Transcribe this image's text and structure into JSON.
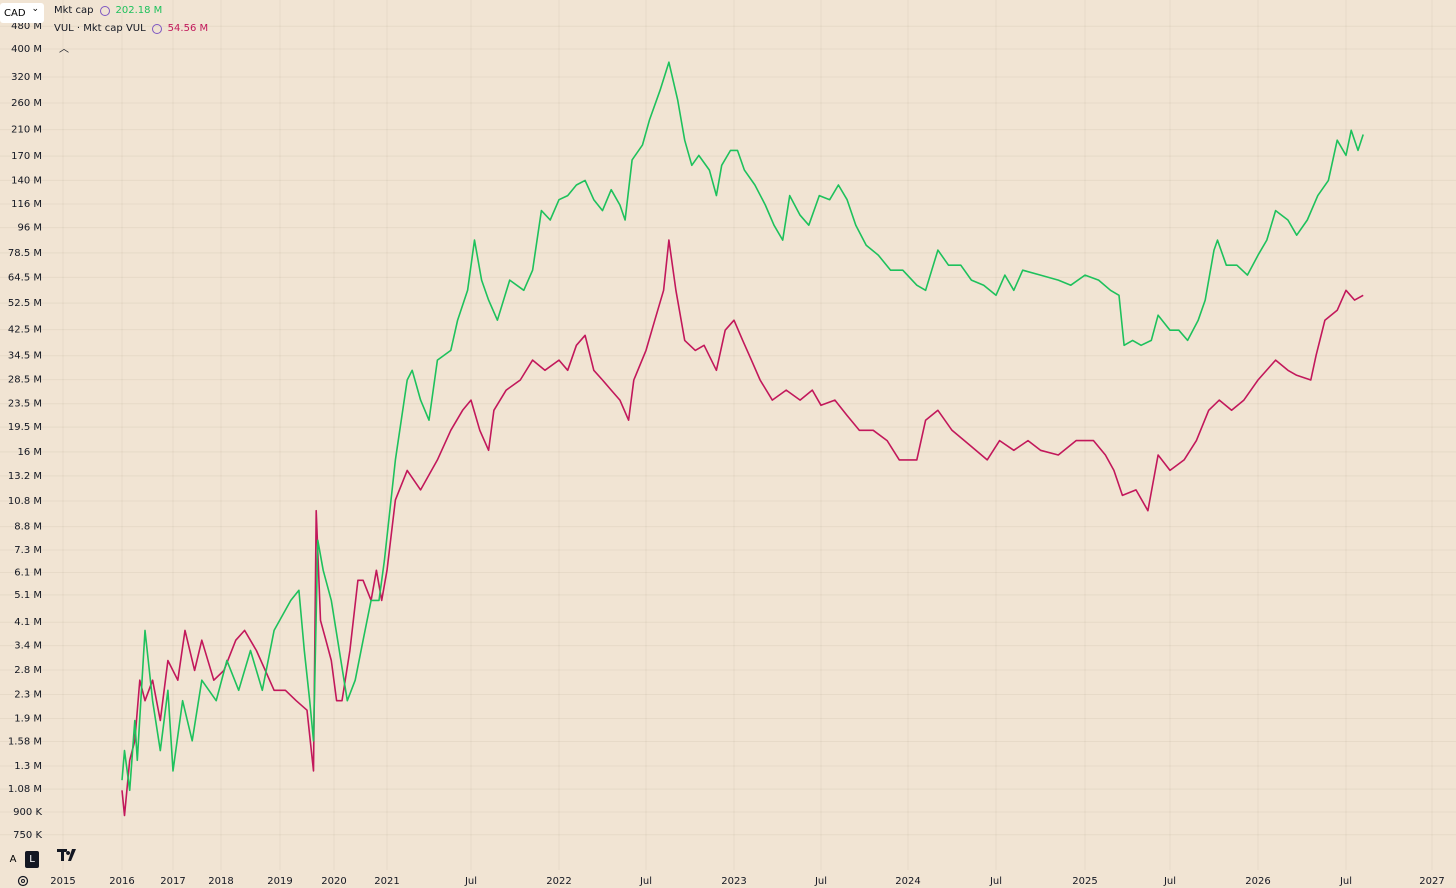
{
  "chart_data": {
    "type": "line",
    "currency": "CAD",
    "log_scale": true,
    "grid": true,
    "background": "#f1e4d3",
    "scale_buttons": [
      "A",
      "L"
    ],
    "ylim": [
      566000,
      592000000
    ],
    "yticks": [
      {
        "value": 480000000.0,
        "label": "480 M"
      },
      {
        "value": 400000000.0,
        "label": "400 M"
      },
      {
        "value": 320000000.0,
        "label": "320 M"
      },
      {
        "value": 260000000.0,
        "label": "260 M"
      },
      {
        "value": 210000000.0,
        "label": "210 M"
      },
      {
        "value": 170000000.0,
        "label": "170 M"
      },
      {
        "value": 140000000.0,
        "label": "140 M"
      },
      {
        "value": 116000000.0,
        "label": "116 M"
      },
      {
        "value": 96000000.0,
        "label": "96 M"
      },
      {
        "value": 78500000.0,
        "label": "78.5 M"
      },
      {
        "value": 64500000.0,
        "label": "64.5 M"
      },
      {
        "value": 52500000.0,
        "label": "52.5 M"
      },
      {
        "value": 42500000.0,
        "label": "42.5 M"
      },
      {
        "value": 34500000.0,
        "label": "34.5 M"
      },
      {
        "value": 28500000.0,
        "label": "28.5 M"
      },
      {
        "value": 23500000.0,
        "label": "23.5 M"
      },
      {
        "value": 19500000.0,
        "label": "19.5 M"
      },
      {
        "value": 16000000.0,
        "label": "16 M"
      },
      {
        "value": 13200000.0,
        "label": "13.2 M"
      },
      {
        "value": 10800000.0,
        "label": "10.8 M"
      },
      {
        "value": 8800000.0,
        "label": "8.8 M"
      },
      {
        "value": 7300000.0,
        "label": "7.3 M"
      },
      {
        "value": 6100000.0,
        "label": "6.1 M"
      },
      {
        "value": 5100000.0,
        "label": "5.1 M"
      },
      {
        "value": 4100000.0,
        "label": "4.1 M"
      },
      {
        "value": 3400000.0,
        "label": "3.4 M"
      },
      {
        "value": 2800000.0,
        "label": "2.8 M"
      },
      {
        "value": 2300000.0,
        "label": "2.3 M"
      },
      {
        "value": 1900000.0,
        "label": "1.9 M"
      },
      {
        "value": 1580000.0,
        "label": "1.58 M"
      },
      {
        "value": 1300000.0,
        "label": "1.3 M"
      },
      {
        "value": 1080000.0,
        "label": "1.08 M"
      },
      {
        "value": 900000,
        "label": "900 K"
      },
      {
        "value": 750000,
        "label": "750 K"
      }
    ],
    "xlim": [
      2014.95,
      2027.2
    ],
    "xticks": [
      2015,
      2016,
      2017,
      2018,
      2019,
      2020,
      2021,
      {
        "value": 2021.5,
        "label": "Jul"
      },
      2022,
      {
        "value": 2022.5,
        "label": "Jul"
      },
      2023,
      {
        "value": 2023.5,
        "label": "Jul"
      },
      2024,
      {
        "value": 2024.5,
        "label": "Jul"
      },
      2025,
      {
        "value": 2025.5,
        "label": "Jul"
      },
      2026,
      {
        "value": 2026.5,
        "label": "Jul"
      },
      2027
    ],
    "series": [
      {
        "name": "Mkt cap",
        "color": "#1ec15c",
        "last_label": "202.18 M",
        "x": [
          2016.0,
          2016.05,
          2016.15,
          2016.25,
          2016.3,
          2016.45,
          2016.6,
          2016.75,
          2016.9,
          2017.0,
          2017.2,
          2017.4,
          2017.6,
          2017.9,
          2018.1,
          2018.3,
          2018.5,
          2018.7,
          2018.9,
          2019.2,
          2019.35,
          2019.45,
          2019.55,
          2019.62,
          2019.7,
          2019.8,
          2019.95,
          2020.1,
          2020.25,
          2020.4,
          2020.55,
          2020.7,
          2020.85,
          2020.95,
          2021.05,
          2021.12,
          2021.15,
          2021.2,
          2021.25,
          2021.3,
          2021.38,
          2021.42,
          2021.48,
          2021.52,
          2021.56,
          2021.6,
          2021.65,
          2021.72,
          2021.8,
          2021.85,
          2021.9,
          2021.95,
          2022.0,
          2022.05,
          2022.1,
          2022.15,
          2022.2,
          2022.25,
          2022.3,
          2022.35,
          2022.38,
          2022.42,
          2022.48,
          2022.52,
          2022.58,
          2022.63,
          2022.68,
          2022.72,
          2022.76,
          2022.8,
          2022.86,
          2022.9,
          2022.93,
          2022.98,
          2023.02,
          2023.06,
          2023.12,
          2023.18,
          2023.23,
          2023.28,
          2023.32,
          2023.38,
          2023.43,
          2023.49,
          2023.55,
          2023.6,
          2023.65,
          2023.7,
          2023.76,
          2023.83,
          2023.9,
          2023.97,
          2024.05,
          2024.1,
          2024.17,
          2024.23,
          2024.3,
          2024.36,
          2024.43,
          2024.5,
          2024.55,
          2024.6,
          2024.65,
          2024.75,
          2024.85,
          2024.92,
          2025.0,
          2025.08,
          2025.15,
          2025.2,
          2025.23,
          2025.28,
          2025.33,
          2025.39,
          2025.43,
          2025.5,
          2025.55,
          2025.6,
          2025.66,
          2025.7,
          2025.75,
          2025.77,
          2025.82,
          2025.88,
          2025.94,
          2026.0,
          2026.05,
          2026.1,
          2026.17,
          2026.22,
          2026.28,
          2026.34,
          2026.4,
          2026.45,
          2026.5,
          2026.53,
          2026.57,
          2026.6
        ],
        "values": [
          1160000.0,
          1470000.0,
          1070000.0,
          1870000.0,
          1360000.0,
          3840000.0,
          2190000.0,
          1470000.0,
          2380000.0,
          1250000.0,
          2190000.0,
          1590000.0,
          2580000.0,
          2190000.0,
          3020000.0,
          2380000.0,
          3270000.0,
          2380000.0,
          3840000.0,
          4880000.0,
          5290000.0,
          3270000.0,
          2190000.0,
          1590000.0,
          7890000.0,
          6210000.0,
          4880000.0,
          3270000.0,
          2190000.0,
          2580000.0,
          3550000.0,
          4880000.0,
          4880000.0,
          6720000.0,
          15000000.0,
          28400000.0,
          30700000.0,
          24200000.0,
          20600000.0,
          33300000.0,
          36000000.0,
          45800000.0,
          58200000.0,
          86900000.0,
          63100000.0,
          53800000.0,
          45800000.0,
          63100000.0,
          58200000.0,
          68300000.0,
          110000000.0,
          102000000.0,
          120000000.0,
          124000000.0,
          135000000.0,
          140000000.0,
          120000000.0,
          110000000.0,
          130000000.0,
          115000000.0,
          102000000.0,
          165000000.0,
          186000000.0,
          227000000.0,
          288000000.0,
          360000000.0,
          266000000.0,
          193000000.0,
          158000000.0,
          171000000.0,
          152000000.0,
          124000000.0,
          158000000.0,
          178000000.0,
          178000000.0,
          152000000.0,
          135000000.0,
          115000000.0,
          97900000.0,
          86900000.0,
          124000000.0,
          106000000.0,
          97900000.0,
          124000000.0,
          120000000.0,
          135000000.0,
          120000000.0,
          97900000.0,
          83400000.0,
          77000000.0,
          68300000.0,
          68300000.0,
          60600000.0,
          58200000.0,
          80200000.0,
          71100000.0,
          71100000.0,
          63100000.0,
          60600000.0,
          55900000.0,
          65700000.0,
          58200000.0,
          68300000.0,
          65700000.0,
          63100000.0,
          60600000.0,
          65700000.0,
          63100000.0,
          58200000.0,
          55900000.0,
          37500000.0,
          39000000.0,
          37500000.0,
          39000000.0,
          47700000.0,
          42300000.0,
          42300000.0,
          39000000.0,
          45800000.0,
          53800000.0,
          80200000.0,
          86900000.0,
          71100000.0,
          71100000.0,
          65700000.0,
          77000000.0,
          86900000.0,
          110000000.0,
          102000000.0,
          90400000.0,
          102000000.0,
          124000000.0,
          140000000.0,
          193000000.0,
          171000000.0,
          209000000.0,
          178000000.0,
          202000000.0
        ]
      },
      {
        "name": "VUL · Mkt cap VUL",
        "color": "#c2185b",
        "last_label": "54.56 M",
        "x": [
          2016.0,
          2016.05,
          2016.15,
          2016.25,
          2016.35,
          2016.45,
          2016.6,
          2016.75,
          2016.9,
          2017.1,
          2017.25,
          2017.45,
          2017.6,
          2017.85,
          2018.05,
          2018.25,
          2018.4,
          2018.6,
          2018.75,
          2018.9,
          2019.1,
          2019.3,
          2019.5,
          2019.62,
          2019.67,
          2019.75,
          2019.85,
          2019.95,
          2020.05,
          2020.15,
          2020.3,
          2020.45,
          2020.55,
          2020.7,
          2020.8,
          2020.9,
          2021.0,
          2021.05,
          2021.12,
          2021.2,
          2021.3,
          2021.38,
          2021.45,
          2021.5,
          2021.55,
          2021.6,
          2021.63,
          2021.7,
          2021.78,
          2021.85,
          2021.92,
          2022.0,
          2022.05,
          2022.1,
          2022.15,
          2022.2,
          2022.25,
          2022.3,
          2022.35,
          2022.4,
          2022.43,
          2022.5,
          2022.55,
          2022.6,
          2022.63,
          2022.67,
          2022.72,
          2022.78,
          2022.83,
          2022.9,
          2022.95,
          2023.0,
          2023.05,
          2023.1,
          2023.15,
          2023.22,
          2023.3,
          2023.38,
          2023.45,
          2023.5,
          2023.58,
          2023.65,
          2023.72,
          2023.8,
          2023.88,
          2023.95,
          2024.05,
          2024.1,
          2024.17,
          2024.25,
          2024.35,
          2024.45,
          2024.52,
          2024.6,
          2024.68,
          2024.75,
          2024.85,
          2024.95,
          2025.05,
          2025.12,
          2025.17,
          2025.22,
          2025.3,
          2025.37,
          2025.43,
          2025.5,
          2025.58,
          2025.65,
          2025.72,
          2025.78,
          2025.85,
          2025.92,
          2026.0,
          2026.1,
          2026.17,
          2026.22,
          2026.3,
          2026.33,
          2026.38,
          2026.45,
          2026.5,
          2026.55,
          2026.6
        ],
        "values": [
          1070000.0,
          875000.0,
          1360000.0,
          1590000.0,
          2580000.0,
          2190000.0,
          2580000.0,
          1870000.0,
          3020000.0,
          2580000.0,
          3840000.0,
          2790000.0,
          3550000.0,
          2580000.0,
          2790000.0,
          3550000.0,
          3840000.0,
          3270000.0,
          2790000.0,
          2380000.0,
          2380000.0,
          2190000.0,
          2030000.0,
          1250000.0,
          10000000.0,
          4160000.0,
          3550000.0,
          3020000.0,
          2190000.0,
          2190000.0,
          3270000.0,
          5730000.0,
          5730000.0,
          4880000.0,
          6210000.0,
          4880000.0,
          6210000.0,
          10900000.0,
          13800000.0,
          11800000.0,
          15000000.0,
          19000000.0,
          22300000.0,
          24200000.0,
          19000000.0,
          16200000.0,
          22300000.0,
          26200000.0,
          28400000.0,
          33300000.0,
          30700000.0,
          33300000.0,
          30700000.0,
          37500000.0,
          40600000.0,
          30700000.0,
          28400000.0,
          26200000.0,
          24200000.0,
          20600000.0,
          28400000.0,
          36000000.0,
          45800000.0,
          58200000.0,
          86900000.0,
          58200000.0,
          39000000.0,
          36000000.0,
          37500000.0,
          30700000.0,
          42300000.0,
          45800000.0,
          39000000.0,
          33300000.0,
          28400000.0,
          24200000.0,
          26200000.0,
          24200000.0,
          26200000.0,
          23200000.0,
          24200000.0,
          21400000.0,
          19000000.0,
          19000000.0,
          17500000.0,
          15000000.0,
          15000000.0,
          20600000.0,
          22300000.0,
          19000000.0,
          16900000.0,
          15000000.0,
          17500000.0,
          16200000.0,
          17500000.0,
          16200000.0,
          15600000.0,
          17500000.0,
          17500000.0,
          15600000.0,
          13800000.0,
          11300000.0,
          11800000.0,
          10000000.0,
          15600000.0,
          13800000.0,
          15000000.0,
          17500000.0,
          22300000.0,
          24200000.0,
          22300000.0,
          24200000.0,
          28400000.0,
          33300000.0,
          30700000.0,
          29500000.0,
          28400000.0,
          34600000.0,
          45800000.0,
          49600000.0,
          58200000.0,
          53800000.0,
          55900000.0
        ]
      }
    ]
  }
}
